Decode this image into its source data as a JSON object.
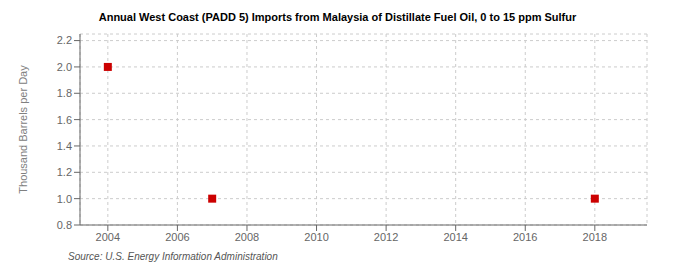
{
  "chart_data": {
    "type": "scatter",
    "title": "Annual West Coast (PADD 5) Imports from Malaysia of Distillate Fuel Oil, 0 to 15 ppm Sulfur",
    "ylabel": "Thousand Barrels per Day",
    "annotations": [
      "Source: U.S. Energy Information Administration"
    ],
    "x": [
      2004,
      2007,
      2018
    ],
    "values": [
      2.0,
      1.0,
      1.0
    ],
    "color": "#cc0000",
    "marker": "square",
    "xlim": [
      2003.2,
      2019.5
    ],
    "xticks": [
      2004,
      2006,
      2008,
      2010,
      2012,
      2014,
      2016,
      2018
    ],
    "ylim": [
      0.8,
      2.25
    ],
    "yticks": [
      0.8,
      {
        "value": 1.0,
        "label": "1.0"
      },
      1.2,
      1.4,
      1.6,
      1.8,
      {
        "value": 2.0,
        "label": "2.0"
      },
      2.2
    ],
    "grid": true
  }
}
